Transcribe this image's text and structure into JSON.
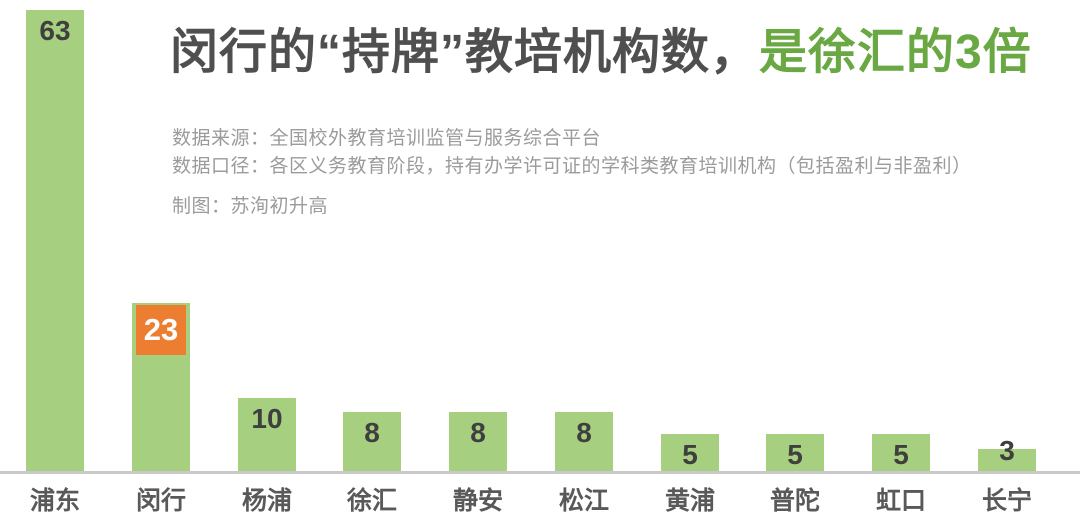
{
  "header": {
    "title_main": "闵行的“持牌”教培机构数，",
    "title_accent": "是徐汇的3倍"
  },
  "notes": {
    "source": "数据来源：全国校外教育培训监管与服务综合平台",
    "caliber": "数据口径：各区义务教育阶段，持有办学许可证的学科类教育培训机构（包括盈利与非盈利）",
    "credit": "制图：苏洵初升高"
  },
  "colors": {
    "bar": "#a6cf80",
    "highlight_badge": "#ed7d31",
    "badge_text": "#ffffff",
    "title_dark": "#4f4f4f",
    "title_accent": "#69a842",
    "value_text": "#3f3f3f",
    "category_text": "#595959",
    "notes_text": "#9b9b9b",
    "axis_line": "#c9c9c9"
  },
  "chart_data": {
    "type": "bar",
    "title": "闵行的“持牌”教培机构数，是徐汇的3倍",
    "categories": [
      "浦东",
      "闵行",
      "杨浦",
      "徐汇",
      "静安",
      "松江",
      "黄浦",
      "普陀",
      "虹口",
      "长宁"
    ],
    "values": [
      63,
      23,
      10,
      8,
      8,
      8,
      5,
      5,
      5,
      3
    ],
    "highlight_index": 1,
    "highlight_value_label": "23",
    "xlabel": "",
    "ylabel": "",
    "ylim": [
      0,
      63
    ],
    "grid": false,
    "legend": "none",
    "value_labels": "shown at top of each bar"
  }
}
